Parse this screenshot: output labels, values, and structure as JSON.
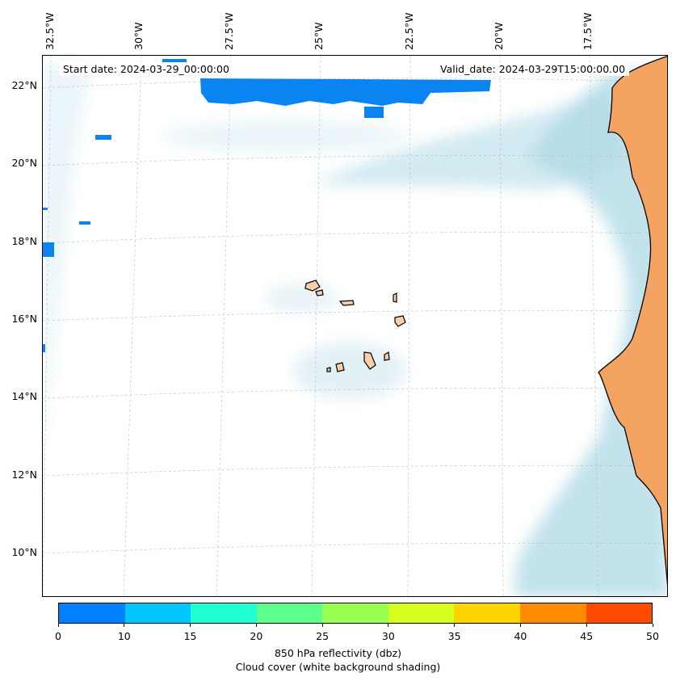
{
  "map": {
    "start_date_text": "Start date: 2024-03-29_00:00:00",
    "valid_date_text": "Valid_date: 2024-03-29T15:00:00.00",
    "longitude_labels": [
      "32.5°W",
      "30°W",
      "27.5°W",
      "25°W",
      "22.5°W",
      "20°W",
      "17.5°W"
    ],
    "latitude_labels": [
      "22°N",
      "20°N",
      "18°N",
      "16°N",
      "14°N",
      "12°N",
      "10°N"
    ],
    "land_color": "#f4a460",
    "cloud_color": "#add8e6",
    "reflectivity_color": "#0a84f0"
  },
  "colorbar": {
    "colors": [
      "#0080ff",
      "#00c8ff",
      "#22ffd2",
      "#5cff8c",
      "#96ff52",
      "#d6ff1e",
      "#ffd400",
      "#ff8c00",
      "#ff4a00"
    ],
    "ticks": [
      "0",
      "10",
      "15",
      "20",
      "25",
      "30",
      "35",
      "40",
      "45",
      "50"
    ],
    "label": "850 hPa reflectivity (dbz)",
    "sublabel": "Cloud cover (white background shading)"
  }
}
